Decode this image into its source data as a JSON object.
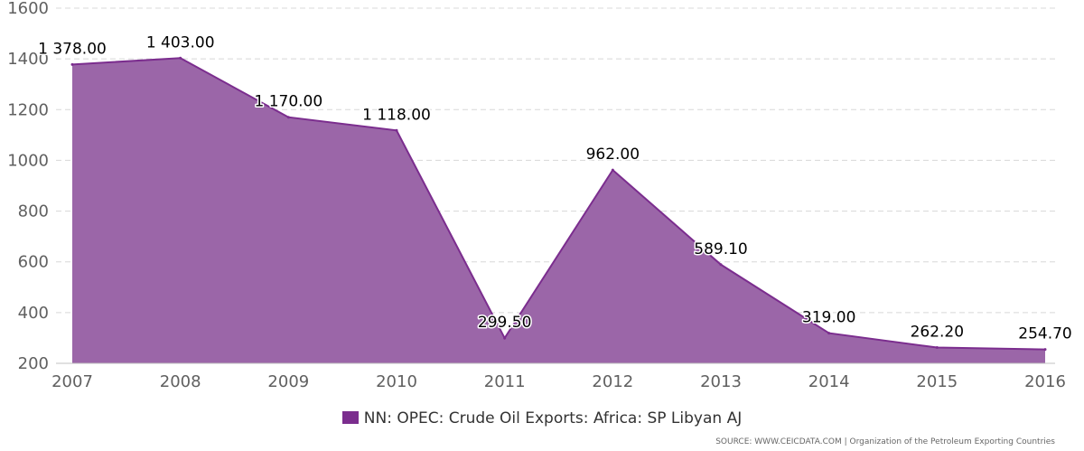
{
  "chart_data": {
    "type": "area",
    "title": "",
    "xlabel": "",
    "ylabel": "",
    "categories": [
      "2007",
      "2008",
      "2009",
      "2010",
      "2011",
      "2012",
      "2013",
      "2014",
      "2015",
      "2016"
    ],
    "series": [
      {
        "name": "NN: OPEC: Crude Oil Exports: Africa: SP Libyan AJ",
        "values": [
          1378.0,
          1403.0,
          1170.0,
          1118.0,
          299.5,
          962.0,
          589.1,
          319.0,
          262.2,
          254.7
        ],
        "data_labels": [
          "1 378.00",
          "1 403.00",
          "1 170.00",
          "1 118.00",
          "299.50",
          "962.00",
          "589.10",
          "319.00",
          "262.20",
          "254.70"
        ],
        "color": "#9b66a8",
        "line_color": "#7b2d8e"
      }
    ],
    "ylim": [
      200,
      1600
    ],
    "yticks": [
      200,
      400,
      600,
      800,
      1000,
      1200,
      1400,
      1600
    ],
    "grid": true,
    "legend": "bottom-center"
  },
  "legend": {
    "label": "NN: OPEC: Crude Oil Exports: Africa: SP Libyan AJ",
    "swatch_color": "#7b2d8e"
  },
  "source": "SOURCE: WWW.CEICDATA.COM | Organization of the Petroleum Exporting Countries"
}
